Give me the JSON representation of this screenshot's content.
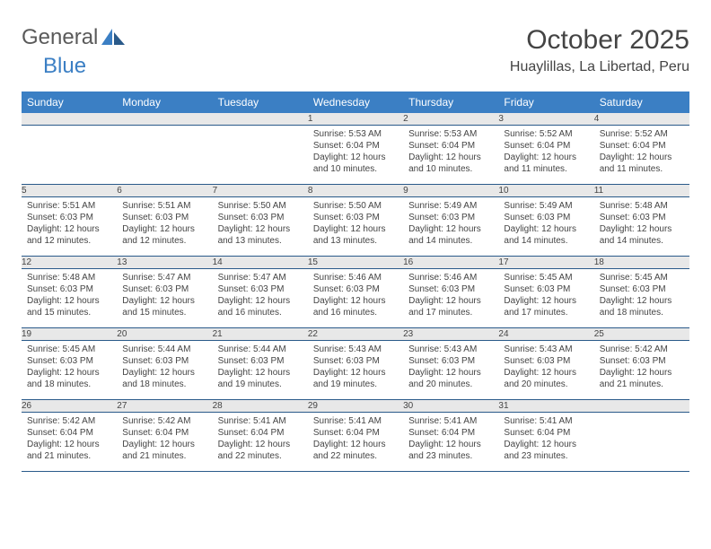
{
  "logo": {
    "text1": "General",
    "text2": "Blue"
  },
  "title": "October 2025",
  "location": "Huaylillas, La Libertad, Peru",
  "colors": {
    "header_bg": "#3b7fc4",
    "header_text": "#ffffff",
    "daynum_bg": "#e8e8e8",
    "row_border": "#2a5a8a",
    "text": "#444444"
  },
  "day_labels": [
    "Sunday",
    "Monday",
    "Tuesday",
    "Wednesday",
    "Thursday",
    "Friday",
    "Saturday"
  ],
  "weeks": [
    [
      null,
      null,
      null,
      {
        "n": "1",
        "sr": "5:53 AM",
        "ss": "6:04 PM",
        "dl": "12 hours and 10 minutes."
      },
      {
        "n": "2",
        "sr": "5:53 AM",
        "ss": "6:04 PM",
        "dl": "12 hours and 10 minutes."
      },
      {
        "n": "3",
        "sr": "5:52 AM",
        "ss": "6:04 PM",
        "dl": "12 hours and 11 minutes."
      },
      {
        "n": "4",
        "sr": "5:52 AM",
        "ss": "6:04 PM",
        "dl": "12 hours and 11 minutes."
      }
    ],
    [
      {
        "n": "5",
        "sr": "5:51 AM",
        "ss": "6:03 PM",
        "dl": "12 hours and 12 minutes."
      },
      {
        "n": "6",
        "sr": "5:51 AM",
        "ss": "6:03 PM",
        "dl": "12 hours and 12 minutes."
      },
      {
        "n": "7",
        "sr": "5:50 AM",
        "ss": "6:03 PM",
        "dl": "12 hours and 13 minutes."
      },
      {
        "n": "8",
        "sr": "5:50 AM",
        "ss": "6:03 PM",
        "dl": "12 hours and 13 minutes."
      },
      {
        "n": "9",
        "sr": "5:49 AM",
        "ss": "6:03 PM",
        "dl": "12 hours and 14 minutes."
      },
      {
        "n": "10",
        "sr": "5:49 AM",
        "ss": "6:03 PM",
        "dl": "12 hours and 14 minutes."
      },
      {
        "n": "11",
        "sr": "5:48 AM",
        "ss": "6:03 PM",
        "dl": "12 hours and 14 minutes."
      }
    ],
    [
      {
        "n": "12",
        "sr": "5:48 AM",
        "ss": "6:03 PM",
        "dl": "12 hours and 15 minutes."
      },
      {
        "n": "13",
        "sr": "5:47 AM",
        "ss": "6:03 PM",
        "dl": "12 hours and 15 minutes."
      },
      {
        "n": "14",
        "sr": "5:47 AM",
        "ss": "6:03 PM",
        "dl": "12 hours and 16 minutes."
      },
      {
        "n": "15",
        "sr": "5:46 AM",
        "ss": "6:03 PM",
        "dl": "12 hours and 16 minutes."
      },
      {
        "n": "16",
        "sr": "5:46 AM",
        "ss": "6:03 PM",
        "dl": "12 hours and 17 minutes."
      },
      {
        "n": "17",
        "sr": "5:45 AM",
        "ss": "6:03 PM",
        "dl": "12 hours and 17 minutes."
      },
      {
        "n": "18",
        "sr": "5:45 AM",
        "ss": "6:03 PM",
        "dl": "12 hours and 18 minutes."
      }
    ],
    [
      {
        "n": "19",
        "sr": "5:45 AM",
        "ss": "6:03 PM",
        "dl": "12 hours and 18 minutes."
      },
      {
        "n": "20",
        "sr": "5:44 AM",
        "ss": "6:03 PM",
        "dl": "12 hours and 18 minutes."
      },
      {
        "n": "21",
        "sr": "5:44 AM",
        "ss": "6:03 PM",
        "dl": "12 hours and 19 minutes."
      },
      {
        "n": "22",
        "sr": "5:43 AM",
        "ss": "6:03 PM",
        "dl": "12 hours and 19 minutes."
      },
      {
        "n": "23",
        "sr": "5:43 AM",
        "ss": "6:03 PM",
        "dl": "12 hours and 20 minutes."
      },
      {
        "n": "24",
        "sr": "5:43 AM",
        "ss": "6:03 PM",
        "dl": "12 hours and 20 minutes."
      },
      {
        "n": "25",
        "sr": "5:42 AM",
        "ss": "6:03 PM",
        "dl": "12 hours and 21 minutes."
      }
    ],
    [
      {
        "n": "26",
        "sr": "5:42 AM",
        "ss": "6:04 PM",
        "dl": "12 hours and 21 minutes."
      },
      {
        "n": "27",
        "sr": "5:42 AM",
        "ss": "6:04 PM",
        "dl": "12 hours and 21 minutes."
      },
      {
        "n": "28",
        "sr": "5:41 AM",
        "ss": "6:04 PM",
        "dl": "12 hours and 22 minutes."
      },
      {
        "n": "29",
        "sr": "5:41 AM",
        "ss": "6:04 PM",
        "dl": "12 hours and 22 minutes."
      },
      {
        "n": "30",
        "sr": "5:41 AM",
        "ss": "6:04 PM",
        "dl": "12 hours and 23 minutes."
      },
      {
        "n": "31",
        "sr": "5:41 AM",
        "ss": "6:04 PM",
        "dl": "12 hours and 23 minutes."
      },
      null
    ]
  ],
  "labels": {
    "sunrise": "Sunrise: ",
    "sunset": "Sunset: ",
    "daylight": "Daylight: "
  }
}
